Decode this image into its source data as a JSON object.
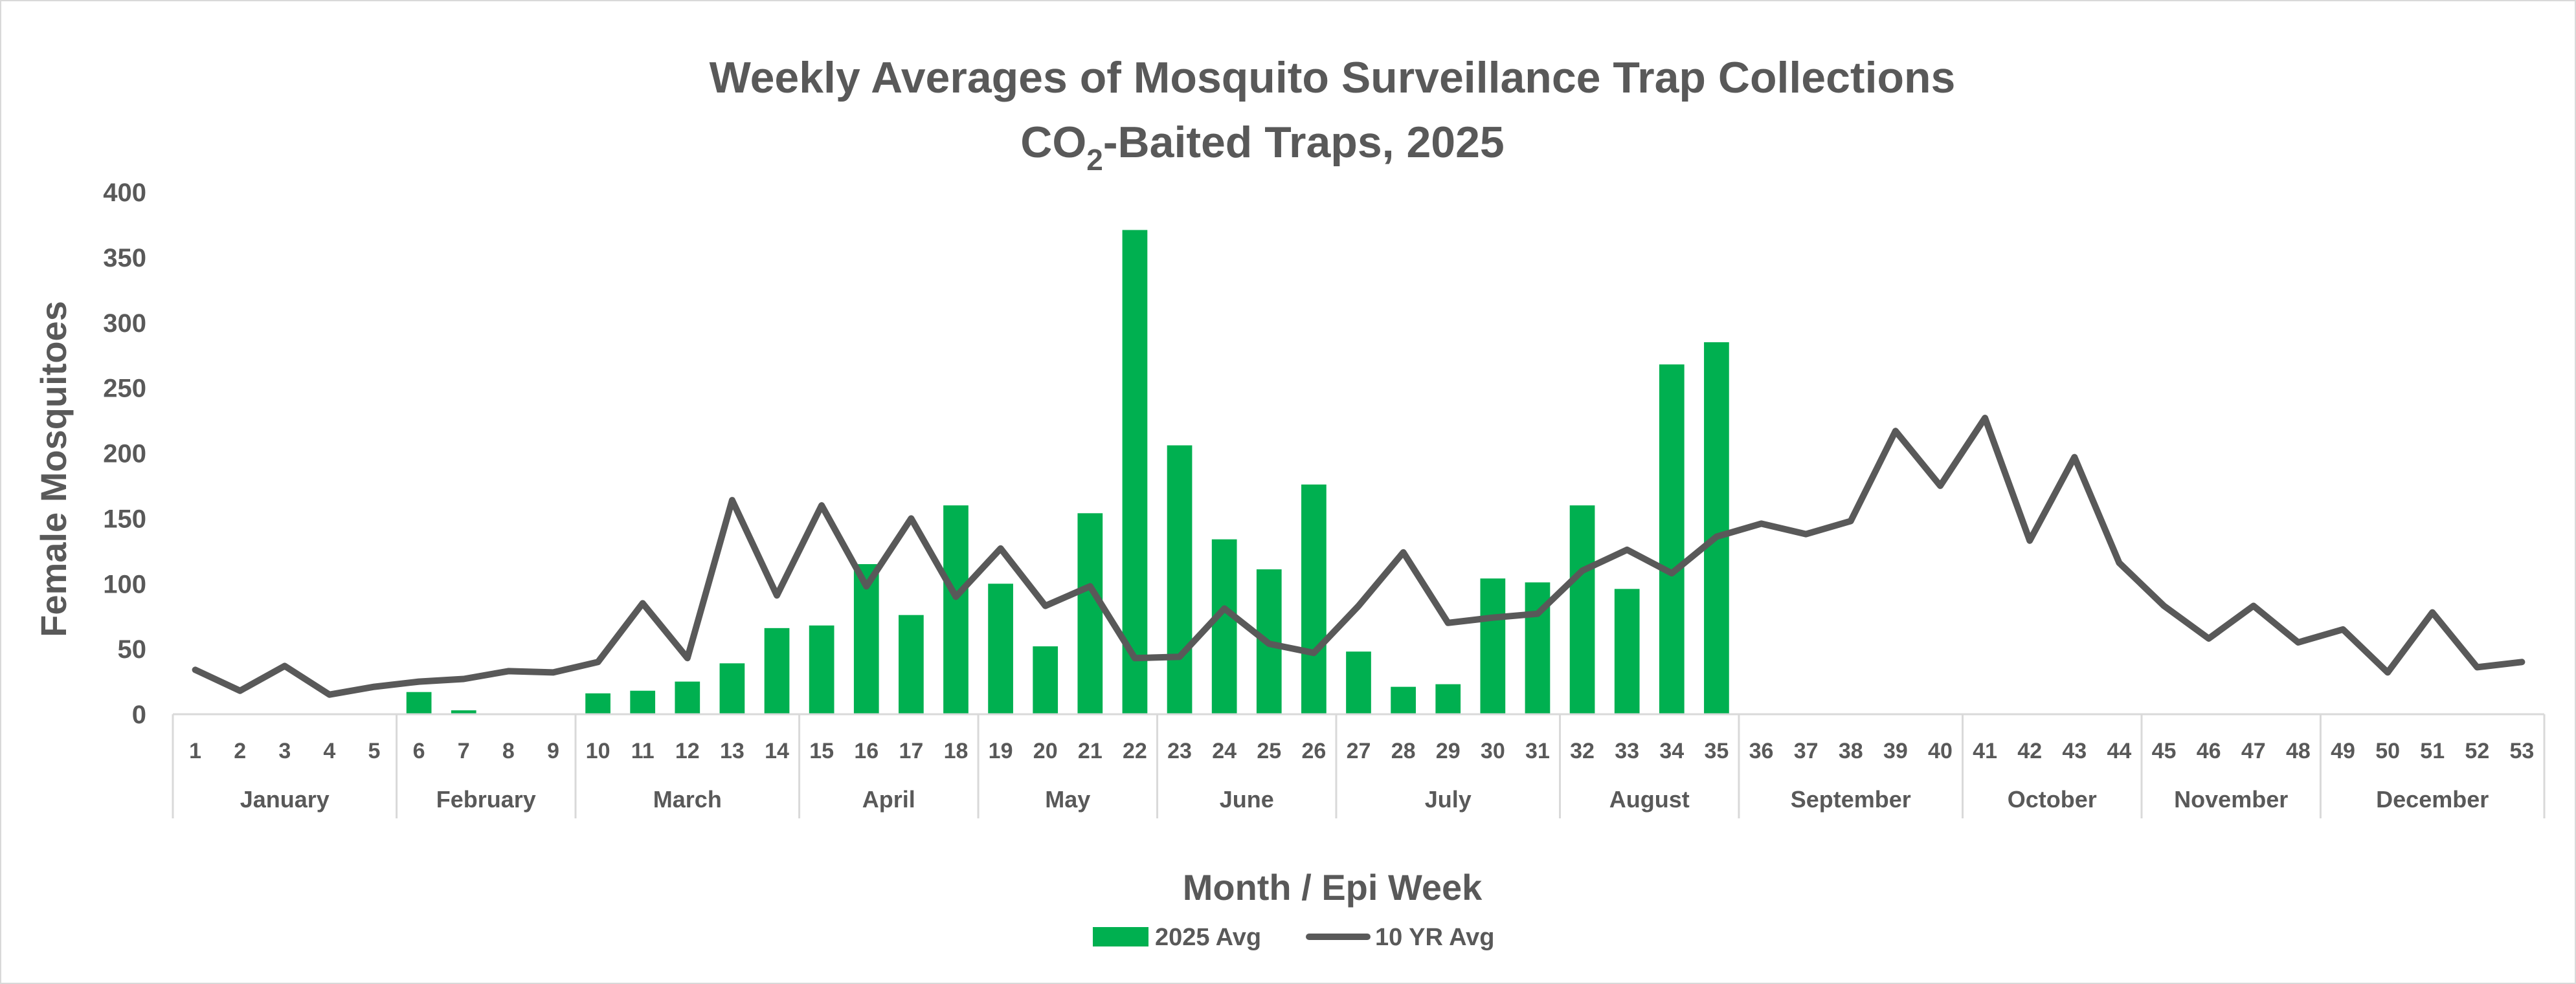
{
  "chart_data": {
    "type": "bar",
    "title": "Weekly Averages of Mosquito Surveillance Trap Collections",
    "subtitle_pre": "CO",
    "subtitle_sub": "2",
    "subtitle_post": "-Baited Traps, 2025",
    "xlabel": "Month / Epi Week",
    "ylabel": "Female Mosquitoes",
    "ylim": [
      0,
      400
    ],
    "yticks": [
      "0",
      "50",
      "100",
      "150",
      "200",
      "250",
      "300",
      "350",
      "400"
    ],
    "grid": false,
    "legend_position": "bottom-center",
    "weeks": [
      "1",
      "2",
      "3",
      "4",
      "5",
      "6",
      "7",
      "8",
      "9",
      "10",
      "11",
      "12",
      "13",
      "14",
      "15",
      "16",
      "17",
      "18",
      "19",
      "20",
      "21",
      "22",
      "23",
      "24",
      "25",
      "26",
      "27",
      "28",
      "29",
      "30",
      "31",
      "32",
      "33",
      "34",
      "35",
      "36",
      "37",
      "38",
      "39",
      "40",
      "41",
      "42",
      "43",
      "44",
      "45",
      "46",
      "47",
      "48",
      "49",
      "50",
      "51",
      "52",
      "53"
    ],
    "months": [
      {
        "name": "January",
        "start": 1,
        "end": 5
      },
      {
        "name": "February",
        "start": 6,
        "end": 9
      },
      {
        "name": "March",
        "start": 10,
        "end": 14
      },
      {
        "name": "April",
        "start": 15,
        "end": 18
      },
      {
        "name": "May",
        "start": 19,
        "end": 22
      },
      {
        "name": "June",
        "start": 23,
        "end": 26
      },
      {
        "name": "July",
        "start": 27,
        "end": 31
      },
      {
        "name": "August",
        "start": 32,
        "end": 35
      },
      {
        "name": "September",
        "start": 36,
        "end": 40
      },
      {
        "name": "October",
        "start": 41,
        "end": 44
      },
      {
        "name": "November",
        "start": 45,
        "end": 48
      },
      {
        "name": "December",
        "start": 49,
        "end": 53
      }
    ],
    "series": [
      {
        "name": "2025 Avg",
        "type": "bar",
        "color": "#00B050",
        "values": [
          null,
          null,
          null,
          null,
          null,
          17,
          3,
          0,
          0,
          16,
          18,
          25,
          39,
          66,
          68,
          115,
          76,
          160,
          100,
          52,
          154,
          371,
          206,
          134,
          111,
          176,
          48,
          21,
          23,
          104,
          101,
          160,
          96,
          268,
          285,
          null,
          null,
          null,
          null,
          null,
          null,
          null,
          null,
          null,
          null,
          null,
          null,
          null,
          null,
          null,
          null,
          null,
          null
        ]
      },
      {
        "name": "10 YR Avg",
        "type": "line",
        "color": "#595959",
        "values": [
          34,
          18,
          37,
          15,
          21,
          25,
          27,
          33,
          32,
          40,
          85,
          43,
          164,
          91,
          160,
          98,
          150,
          90,
          127,
          83,
          98,
          43,
          44,
          81,
          54,
          47,
          83,
          124,
          70,
          74,
          77,
          110,
          126,
          108,
          136,
          146,
          138,
          148,
          217,
          175,
          227,
          133,
          197,
          116,
          83,
          58,
          83,
          55,
          65,
          32,
          78,
          36,
          40
        ]
      }
    ]
  }
}
